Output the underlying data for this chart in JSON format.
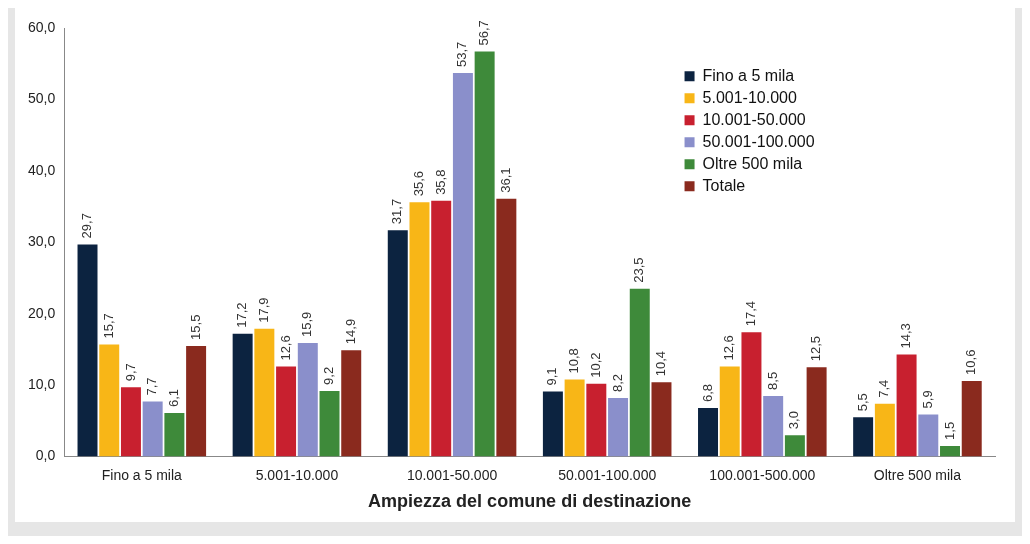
{
  "chart_data": {
    "type": "bar",
    "xlabel": "Ampiezza del comune di destinazione",
    "categories": [
      "Fino a 5 mila",
      "5.001-10.000",
      "10.001-50.000",
      "50.001-100.000",
      "100.001-500.000",
      "Oltre 500 mila"
    ],
    "series": [
      {
        "name": "Fino a 5 mila",
        "color": "#0c2340",
        "values": [
          29.7,
          17.2,
          31.7,
          9.1,
          6.8,
          5.5
        ],
        "value_labels": [
          "29,7",
          "17,2",
          "31,7",
          "9,1",
          "6,8",
          "5,5"
        ]
      },
      {
        "name": "5.001-10.000",
        "color": "#f8b617",
        "values": [
          15.7,
          17.9,
          35.6,
          10.8,
          12.6,
          7.4
        ],
        "value_labels": [
          "15,7",
          "17,9",
          "35,6",
          "10,8",
          "12,6",
          "7,4"
        ]
      },
      {
        "name": "10.001-50.000",
        "color": "#c8202f",
        "values": [
          9.7,
          12.6,
          35.8,
          10.2,
          17.4,
          14.3
        ],
        "value_labels": [
          "9,7",
          "12,6",
          "35,8",
          "10,2",
          "17,4",
          "14,3"
        ]
      },
      {
        "name": "50.001-100.000",
        "color": "#8a8fcb",
        "values": [
          7.7,
          15.9,
          53.7,
          8.2,
          8.5,
          5.9
        ],
        "value_labels": [
          "7,7",
          "15,9",
          "53,7",
          "8,2",
          "8,5",
          "5,9"
        ]
      },
      {
        "name": "Oltre 500 mila",
        "color": "#3e8a3a",
        "values": [
          6.1,
          9.2,
          56.7,
          23.5,
          3.0,
          1.5
        ],
        "value_labels": [
          "6,1",
          "9,2",
          "56,7",
          "23,5",
          "3,0",
          "1,5"
        ]
      },
      {
        "name": "Totale",
        "color": "#8a2a1e",
        "values": [
          15.5,
          14.9,
          36.1,
          10.4,
          12.5,
          10.6
        ],
        "value_labels": [
          "15,5",
          "14,9",
          "36,1",
          "10,4",
          "12,5",
          "10,6"
        ]
      }
    ],
    "ylim": [
      0,
      60
    ],
    "yticks": [
      {
        "value": 0,
        "label": "0,0"
      },
      {
        "value": 10,
        "label": "10,0"
      },
      {
        "value": 20,
        "label": "20,0"
      },
      {
        "value": 30,
        "label": "30,0"
      },
      {
        "value": 40,
        "label": "40,0"
      },
      {
        "value": 50,
        "label": "50,0"
      },
      {
        "value": 60,
        "label": "60,0"
      }
    ],
    "grid": false,
    "legend": "top right"
  }
}
